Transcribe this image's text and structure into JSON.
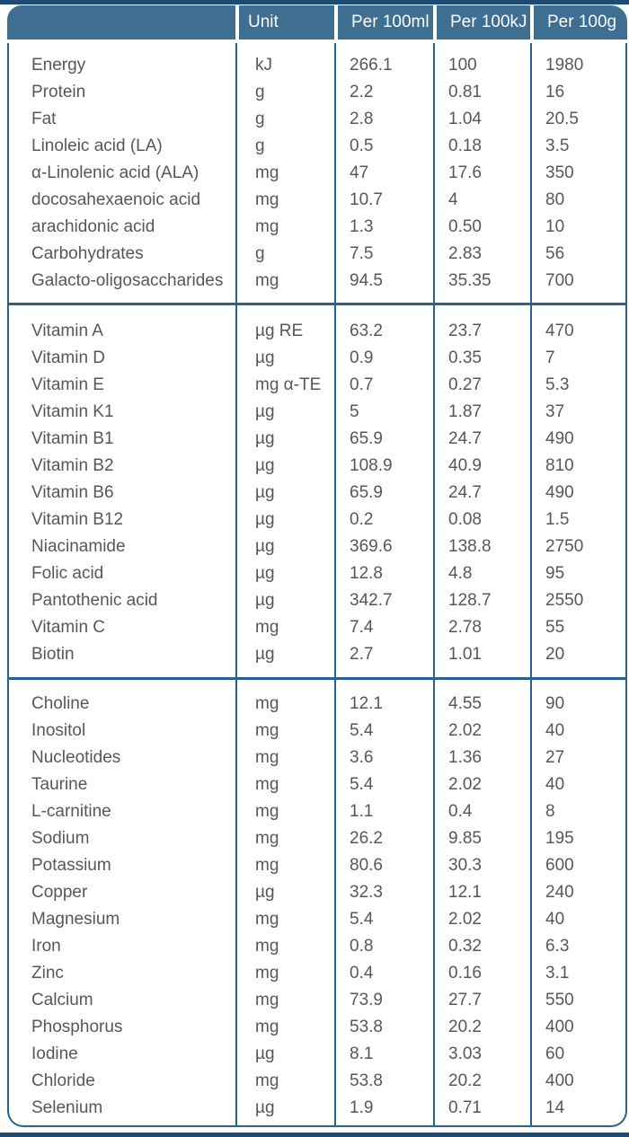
{
  "title": "Nutrition information table",
  "colors": {
    "bar_navy": "#1d4b73",
    "header_bg": "#3e6e91",
    "header_text": "#ffffff",
    "line_blue": "#29628f",
    "text_gray": "#54575c"
  },
  "table": {
    "headers": [
      "",
      "Unit",
      "Per 100ml",
      "Per 100kJ",
      "Per 100g"
    ],
    "sections": [
      {
        "name": "macronutrients",
        "rows": [
          [
            "Energy",
            "kJ",
            "266.1",
            "100",
            "1980"
          ],
          [
            "Protein",
            "g",
            "2.2",
            "0.81",
            "16"
          ],
          [
            "Fat",
            "g",
            "2.8",
            "1.04",
            "20.5"
          ],
          [
            "Linoleic acid (LA)",
            "g",
            "0.5",
            "0.18",
            "3.5"
          ],
          [
            "α-Linolenic acid (ALA)",
            "mg",
            "47",
            "17.6",
            "350"
          ],
          [
            "docosahexaenoic acid",
            "mg",
            "10.7",
            "4",
            "80"
          ],
          [
            "arachidonic acid",
            "mg",
            "1.3",
            "0.50",
            "10"
          ],
          [
            "Carbohydrates",
            "g",
            "7.5",
            "2.83",
            "56"
          ],
          [
            "Galacto-oligosaccharides",
            "mg",
            "94.5",
            "35.35",
            "700"
          ]
        ]
      },
      {
        "name": "vitamins",
        "rows": [
          [
            "Vitamin A",
            "µg RE",
            "63.2",
            "23.7",
            "470"
          ],
          [
            "Vitamin D",
            "µg",
            "0.9",
            "0.35",
            "7"
          ],
          [
            "Vitamin E",
            "mg α-TE",
            "0.7",
            "0.27",
            "5.3"
          ],
          [
            "Vitamin K1",
            "µg",
            "5",
            "1.87",
            "37"
          ],
          [
            "Vitamin B1",
            "µg",
            "65.9",
            "24.7",
            "490"
          ],
          [
            "Vitamin B2",
            "µg",
            "108.9",
            "40.9",
            "810"
          ],
          [
            "Vitamin B6",
            "µg",
            "65.9",
            "24.7",
            "490"
          ],
          [
            "Vitamin B12",
            "µg",
            "0.2",
            "0.08",
            "1.5"
          ],
          [
            "Niacinamide",
            "µg",
            "369.6",
            "138.8",
            "2750"
          ],
          [
            "Folic acid",
            "µg",
            "12.8",
            "4.8",
            "95"
          ],
          [
            "Pantothenic acid",
            "µg",
            "342.7",
            "128.7",
            "2550"
          ],
          [
            "Vitamin C",
            "mg",
            "7.4",
            "2.78",
            "55"
          ],
          [
            "Biotin",
            "µg",
            "2.7",
            "1.01",
            "20"
          ]
        ]
      },
      {
        "name": "minerals-and-others",
        "rows": [
          [
            "Choline",
            "mg",
            "12.1",
            "4.55",
            "90"
          ],
          [
            "Inositol",
            "mg",
            "5.4",
            "2.02",
            "40"
          ],
          [
            "Nucleotides",
            "mg",
            "3.6",
            "1.36",
            "27"
          ],
          [
            "Taurine",
            "mg",
            "5.4",
            "2.02",
            "40"
          ],
          [
            "L-carnitine",
            "mg",
            "1.1",
            "0.4",
            "8"
          ],
          [
            "Sodium",
            "mg",
            "26.2",
            "9.85",
            "195"
          ],
          [
            "Potassium",
            "mg",
            "80.6",
            "30.3",
            "600"
          ],
          [
            "Copper",
            "µg",
            "32.3",
            "12.1",
            "240"
          ],
          [
            "Magnesium",
            "mg",
            "5.4",
            "2.02",
            "40"
          ],
          [
            "Iron",
            "mg",
            "0.8",
            "0.32",
            "6.3"
          ],
          [
            "Zinc",
            "mg",
            "0.4",
            "0.16",
            "3.1"
          ],
          [
            "Calcium",
            "mg",
            "73.9",
            "27.7",
            "550"
          ],
          [
            "Phosphorus",
            "mg",
            "53.8",
            "20.2",
            "400"
          ],
          [
            "Iodine",
            "µg",
            "8.1",
            "3.03",
            "60"
          ],
          [
            "Chloride",
            "mg",
            "53.8",
            "20.2",
            "400"
          ],
          [
            "Selenium",
            "µg",
            "1.9",
            "0.71",
            "14"
          ]
        ]
      }
    ]
  }
}
